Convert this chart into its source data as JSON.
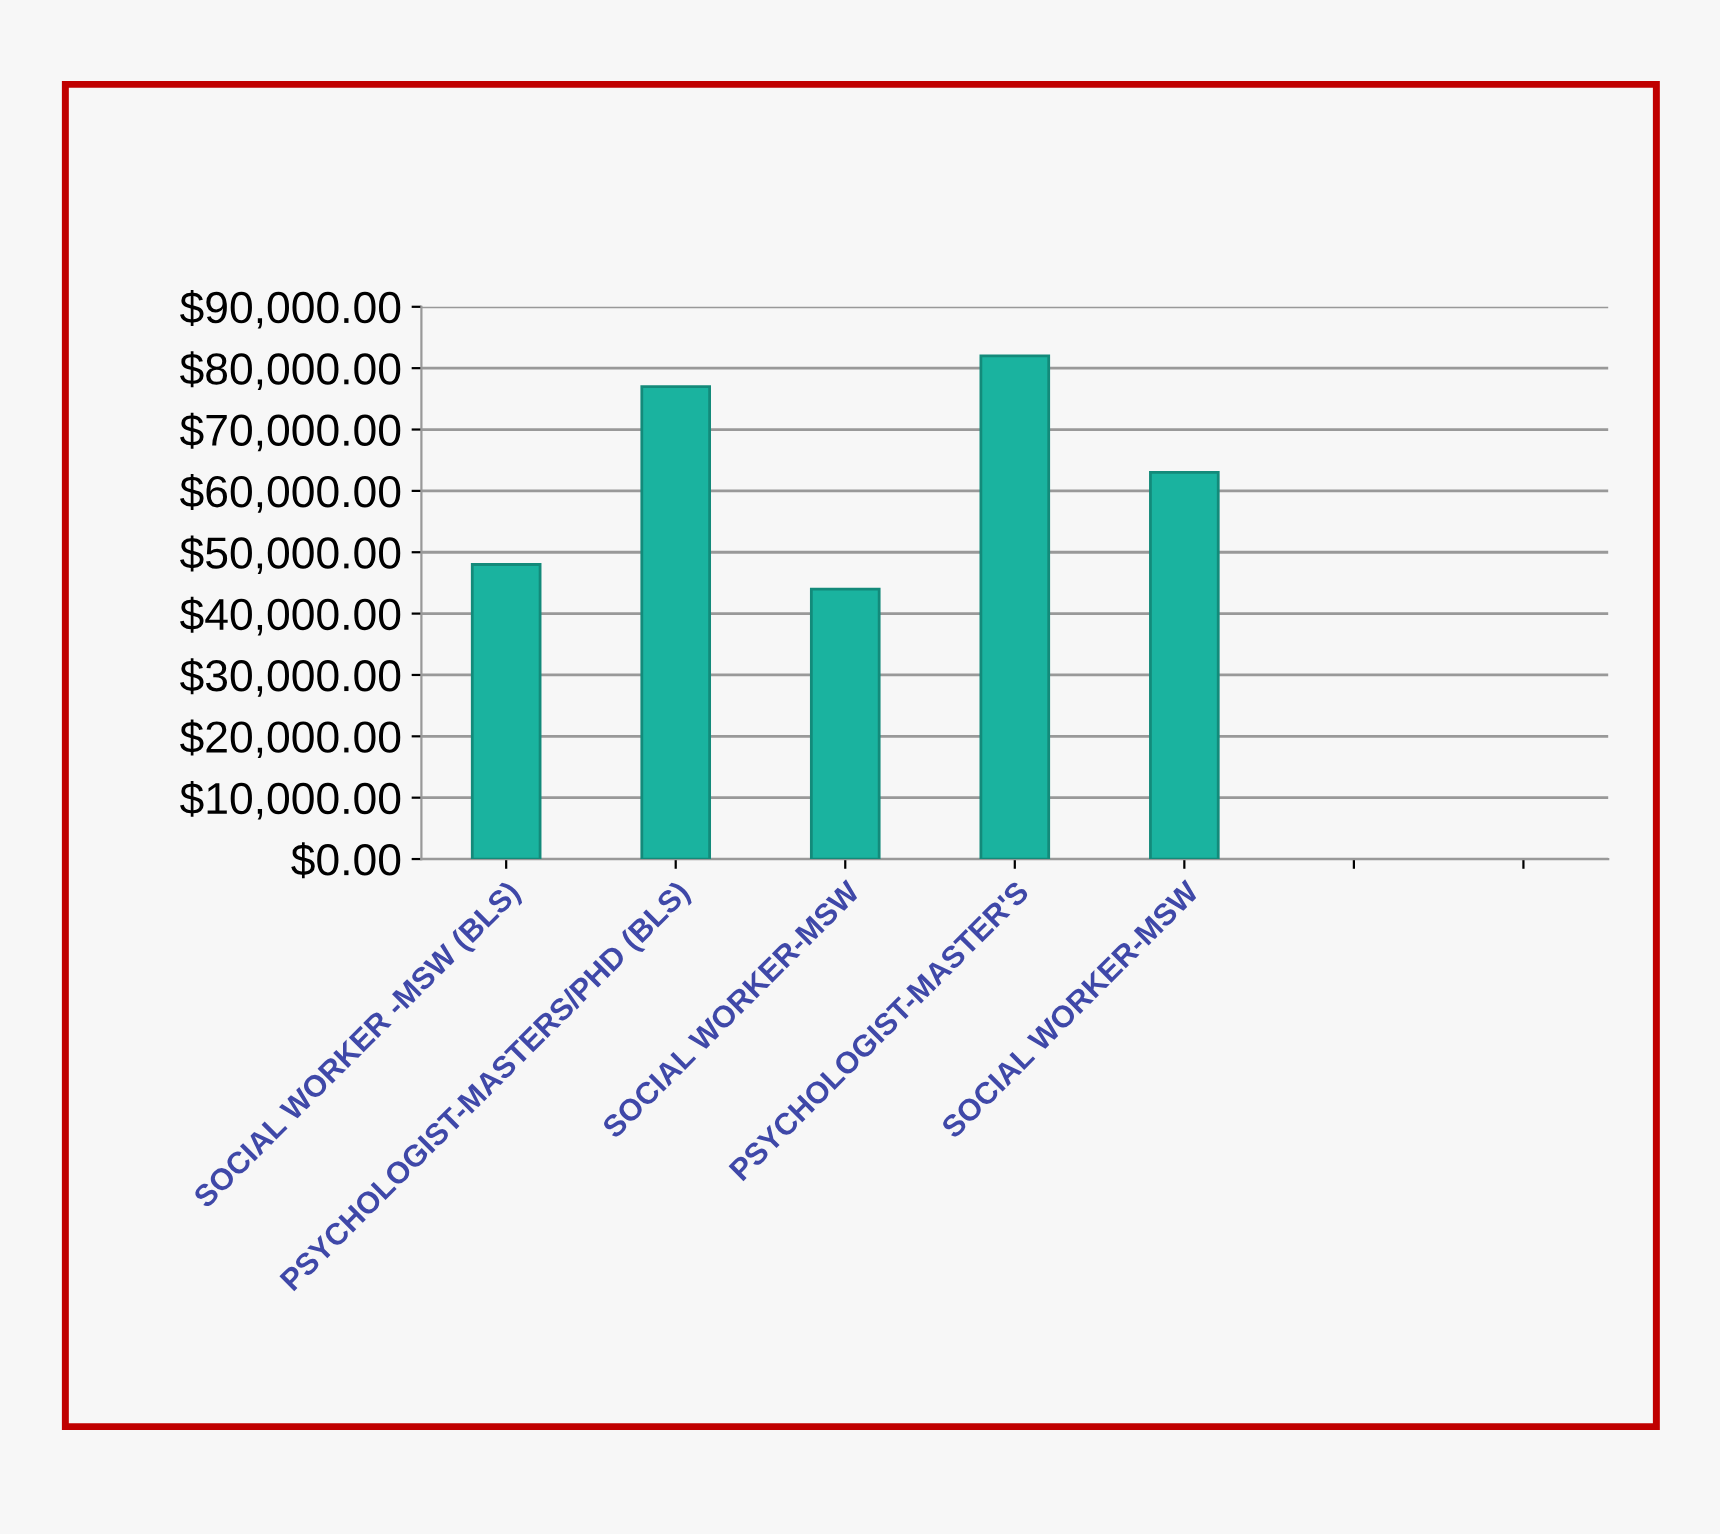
{
  "chart_data": {
    "type": "bar",
    "categories": [
      "SOCIAL WORKER -MSW (BLS)",
      "PSYCHOLOGIST-MASTERS/PHD (BLS)",
      "SOCIAL WORKER-MSW",
      "PSYCHOLOGIST-MASTER'S",
      "SOCIAL WORKER-MSW",
      null,
      null
    ],
    "values": [
      48000,
      77000,
      44000,
      82000,
      63000,
      null,
      null
    ],
    "color": "#1ab39f",
    "ylim": [
      0,
      90000
    ],
    "yticks": [
      {
        "value": 0,
        "label": "$0.00"
      },
      {
        "value": 10000,
        "label": "$10,000.00"
      },
      {
        "value": 20000,
        "label": "$20,000.00"
      },
      {
        "value": 30000,
        "label": "$30,000.00"
      },
      {
        "value": 40000,
        "label": "$40,000.00"
      },
      {
        "value": 50000,
        "label": "$50,000.00"
      },
      {
        "value": 60000,
        "label": "$60,000.00"
      },
      {
        "value": 70000,
        "label": "$70,000.00"
      },
      {
        "value": 80000,
        "label": "$80,000.00"
      },
      {
        "value": 90000,
        "label": "$90,000.00"
      }
    ],
    "grid": "y"
  }
}
